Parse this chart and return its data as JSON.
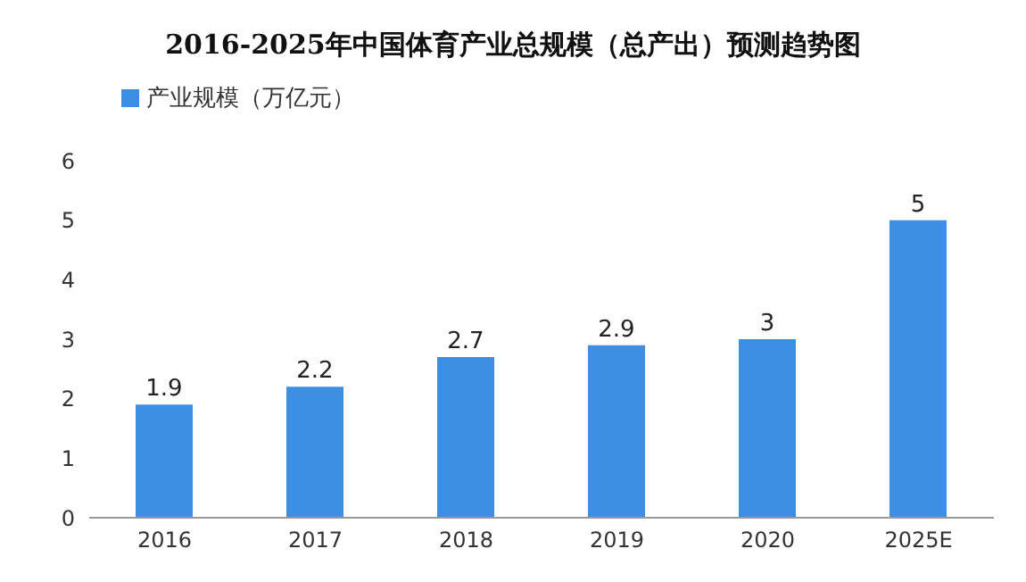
{
  "chart_data": {
    "type": "bar",
    "title": "2016-2025年中国体育产业总规模（总产出）预测趋势图",
    "categories": [
      "2016",
      "2017",
      "2018",
      "2019",
      "2020",
      "2025E"
    ],
    "series": [
      {
        "name": "产业规模（万亿元）",
        "color": "#3d8fe4",
        "values": [
          1.9,
          2.2,
          2.7,
          2.9,
          3,
          5
        ]
      }
    ],
    "ylim": [
      0,
      6
    ],
    "yticks": [
      0,
      1,
      2,
      3,
      4,
      5,
      6
    ],
    "grid": false,
    "legend": "top left",
    "data_labels": true
  }
}
